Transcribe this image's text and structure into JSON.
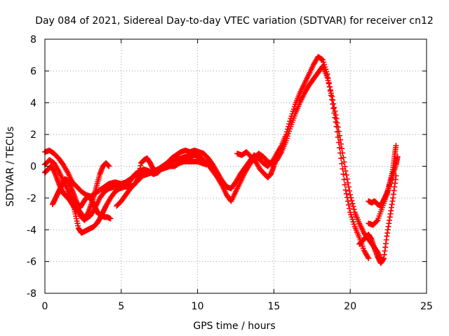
{
  "chart_data": {
    "type": "scatter",
    "title": "Day 084 of 2021, Sidereal Day-to-day VTEC variation (SDTVAR) for receiver cn12",
    "xlabel": "GPS time / hours",
    "ylabel": "SDTVAR / TECUs",
    "xlim": [
      0,
      25
    ],
    "ylim": [
      -8,
      8
    ],
    "xticks": [
      0,
      5,
      10,
      15,
      20,
      25
    ],
    "yticks": [
      -8,
      -6,
      -4,
      -2,
      0,
      2,
      4,
      6,
      8
    ],
    "grid": true,
    "marker": "+",
    "color": "#ff0000",
    "series": [
      {
        "points": [
          [
            0.0,
            0.9
          ],
          [
            0.3,
            1.0
          ],
          [
            0.6,
            0.8
          ],
          [
            0.9,
            0.5
          ],
          [
            1.2,
            0.1
          ],
          [
            1.5,
            -0.4
          ],
          [
            1.8,
            -1.0
          ],
          [
            2.1,
            -1.3
          ],
          [
            2.4,
            -1.6
          ],
          [
            2.7,
            -1.8
          ],
          [
            3.0,
            -1.9
          ],
          [
            3.3,
            -1.7
          ],
          [
            3.6,
            -1.5
          ],
          [
            3.9,
            -1.3
          ],
          [
            4.2,
            -1.1
          ],
          [
            4.6,
            -1.0
          ],
          [
            5.0,
            -1.1
          ],
          [
            5.3,
            -1.3
          ],
          [
            5.6,
            -0.9
          ],
          [
            5.9,
            -0.5
          ],
          [
            6.2,
            -0.3
          ],
          [
            6.5,
            -0.2
          ],
          [
            6.8,
            -0.3
          ],
          [
            7.1,
            -0.5
          ],
          [
            7.4,
            -0.4
          ],
          [
            7.7,
            -0.1
          ],
          [
            8.0,
            0.2
          ],
          [
            8.3,
            0.5
          ],
          [
            8.6,
            0.7
          ],
          [
            8.9,
            0.9
          ],
          [
            9.2,
            1.0
          ],
          [
            9.5,
            0.9
          ],
          [
            9.8,
            1.0
          ],
          [
            10.1,
            0.9
          ],
          [
            10.4,
            0.8
          ],
          [
            10.7,
            0.5
          ],
          [
            11.0,
            0.1
          ],
          [
            11.3,
            -0.4
          ],
          [
            11.6,
            -0.9
          ],
          [
            11.9,
            -1.3
          ],
          [
            12.2,
            -1.4
          ],
          [
            12.5,
            -1.0
          ],
          [
            12.8,
            -0.5
          ],
          [
            13.1,
            -0.1
          ],
          [
            13.4,
            0.3
          ],
          [
            13.7,
            0.7
          ],
          [
            14.0,
            0.5
          ],
          [
            14.3,
            0.2
          ],
          [
            14.6,
            0.0
          ],
          [
            14.9,
            0.3
          ],
          [
            15.2,
            0.8
          ],
          [
            15.5,
            1.3
          ],
          [
            15.8,
            2.0
          ],
          [
            16.1,
            3.0
          ],
          [
            16.4,
            3.9
          ],
          [
            16.7,
            4.6
          ],
          [
            17.0,
            5.2
          ],
          [
            17.3,
            5.8
          ],
          [
            17.6,
            6.4
          ],
          [
            17.9,
            6.9
          ],
          [
            18.2,
            6.7
          ],
          [
            18.5,
            5.8
          ],
          [
            18.8,
            4.2
          ],
          [
            19.1,
            2.5
          ],
          [
            19.4,
            0.5
          ],
          [
            19.7,
            -1.5
          ],
          [
            20.0,
            -2.9
          ],
          [
            20.3,
            -3.8
          ],
          [
            20.6,
            -4.5
          ],
          [
            20.9,
            -5.3
          ],
          [
            21.2,
            -5.8
          ]
        ]
      },
      {
        "points": [
          [
            0.0,
            0.1
          ],
          [
            0.3,
            0.4
          ],
          [
            0.6,
            0.2
          ],
          [
            0.9,
            -0.3
          ],
          [
            1.2,
            -0.9
          ],
          [
            1.5,
            -1.5
          ],
          [
            1.8,
            -2.1
          ],
          [
            2.1,
            -2.6
          ],
          [
            2.4,
            -3.0
          ],
          [
            2.7,
            -3.3
          ],
          [
            3.0,
            -3.1
          ],
          [
            3.3,
            -2.6
          ],
          [
            3.6,
            -2.0
          ],
          [
            3.9,
            -1.6
          ],
          [
            4.2,
            -1.4
          ],
          [
            4.6,
            -1.3
          ],
          [
            5.0,
            -1.1
          ],
          [
            5.3,
            -1.0
          ],
          [
            5.6,
            -0.8
          ],
          [
            5.9,
            -0.6
          ],
          [
            6.2,
            -0.5
          ],
          [
            6.5,
            -0.4
          ],
          [
            6.8,
            -0.4
          ],
          [
            7.1,
            -0.3
          ],
          [
            7.4,
            -0.2
          ],
          [
            7.7,
            0.0
          ],
          [
            8.0,
            0.2
          ],
          [
            8.3,
            0.3
          ],
          [
            8.6,
            0.4
          ],
          [
            8.9,
            0.5
          ],
          [
            9.2,
            0.6
          ],
          [
            9.5,
            0.6
          ],
          [
            9.8,
            0.7
          ],
          [
            10.1,
            0.6
          ],
          [
            10.4,
            0.4
          ],
          [
            10.7,
            0.1
          ],
          [
            11.0,
            -0.3
          ],
          [
            11.3,
            -0.7
          ],
          [
            11.6,
            -1.2
          ],
          [
            11.9,
            -1.8
          ],
          [
            12.2,
            -2.2
          ],
          [
            12.5,
            -1.6
          ],
          [
            12.8,
            -1.0
          ],
          [
            13.1,
            -0.4
          ],
          [
            13.4,
            0.1
          ],
          [
            13.7,
            0.5
          ],
          [
            14.0,
            0.8
          ],
          [
            14.3,
            0.6
          ],
          [
            14.6,
            0.3
          ],
          [
            14.9,
            0.1
          ],
          [
            15.2,
            0.4
          ],
          [
            15.5,
            0.9
          ],
          [
            15.8,
            1.6
          ],
          [
            16.1,
            2.5
          ],
          [
            16.4,
            3.3
          ],
          [
            16.7,
            4.0
          ],
          [
            17.0,
            4.6
          ],
          [
            17.3,
            5.1
          ],
          [
            17.6,
            5.5
          ],
          [
            17.9,
            5.9
          ],
          [
            18.2,
            6.3
          ],
          [
            18.5,
            5.6
          ],
          [
            18.8,
            4.4
          ],
          [
            19.1,
            3.0
          ],
          [
            19.4,
            1.4
          ],
          [
            19.7,
            -0.3
          ],
          [
            20.0,
            -1.8
          ],
          [
            20.3,
            -2.9
          ],
          [
            20.6,
            -3.6
          ],
          [
            20.9,
            -4.2
          ],
          [
            21.2,
            -4.6
          ],
          [
            21.5,
            -5.0
          ],
          [
            21.8,
            -5.4
          ],
          [
            22.0,
            -5.9
          ]
        ]
      },
      {
        "points": [
          [
            0.0,
            -0.4
          ],
          [
            0.2,
            -0.2
          ],
          [
            0.4,
            0.0
          ],
          [
            0.6,
            -0.3
          ],
          [
            0.8,
            -0.8
          ],
          [
            1.0,
            -1.3
          ],
          [
            1.2,
            -1.7
          ],
          [
            1.4,
            -1.9
          ],
          [
            1.6,
            -2.1
          ],
          [
            1.8,
            -2.4
          ],
          [
            2.0,
            -2.7
          ],
          [
            2.2,
            -2.9
          ],
          [
            2.4,
            -3.2
          ],
          [
            2.6,
            -3.4
          ],
          [
            2.8,
            -3.0
          ],
          [
            3.0,
            -2.5
          ],
          [
            3.2,
            -1.9
          ],
          [
            3.4,
            -1.2
          ],
          [
            3.6,
            -0.5
          ],
          [
            3.8,
            0.0
          ],
          [
            4.0,
            0.2
          ],
          [
            4.2,
            0.0
          ]
        ]
      },
      {
        "points": [
          [
            0.5,
            -2.4
          ],
          [
            0.7,
            -2.0
          ],
          [
            0.9,
            -1.6
          ],
          [
            1.1,
            -1.2
          ],
          [
            1.3,
            -0.8
          ],
          [
            1.5,
            -0.9
          ],
          [
            1.7,
            -1.3
          ],
          [
            1.9,
            -1.8
          ],
          [
            2.1,
            -2.3
          ],
          [
            2.3,
            -2.6
          ],
          [
            2.5,
            -2.3
          ],
          [
            2.7,
            -2.0
          ],
          [
            2.9,
            -1.9
          ],
          [
            3.1,
            -2.2
          ],
          [
            3.3,
            -2.6
          ],
          [
            3.5,
            -3.0
          ],
          [
            3.7,
            -3.1
          ],
          [
            3.9,
            -3.2
          ],
          [
            4.1,
            -3.2
          ],
          [
            4.3,
            -3.3
          ]
        ]
      },
      {
        "points": [
          [
            1.5,
            -1.6
          ],
          [
            1.8,
            -2.2
          ],
          [
            2.0,
            -3.0
          ],
          [
            2.2,
            -3.9
          ],
          [
            2.4,
            -4.2
          ],
          [
            2.6,
            -4.1
          ],
          [
            2.8,
            -4.0
          ],
          [
            3.0,
            -3.9
          ],
          [
            3.2,
            -3.8
          ],
          [
            3.4,
            -3.6
          ],
          [
            3.6,
            -3.3
          ],
          [
            3.8,
            -2.9
          ],
          [
            4.0,
            -2.5
          ],
          [
            4.3,
            -2.0
          ],
          [
            4.6,
            -1.6
          ],
          [
            4.9,
            -1.4
          ],
          [
            5.2,
            -1.3
          ],
          [
            5.5,
            -1.3
          ],
          [
            5.8,
            -1.2
          ],
          [
            6.1,
            -0.9
          ],
          [
            6.4,
            -0.6
          ],
          [
            6.7,
            -0.5
          ],
          [
            7.0,
            -0.4
          ],
          [
            7.3,
            -0.3
          ],
          [
            7.6,
            -0.2
          ],
          [
            7.9,
            -0.1
          ],
          [
            8.2,
            0.0
          ],
          [
            8.5,
            0.0
          ],
          [
            8.8,
            0.2
          ],
          [
            9.1,
            0.3
          ],
          [
            9.4,
            0.3
          ],
          [
            9.7,
            0.3
          ],
          [
            10.0,
            0.3
          ],
          [
            10.3,
            0.2
          ],
          [
            10.6,
            0.1
          ]
        ]
      },
      {
        "points": [
          [
            4.7,
            -2.5
          ],
          [
            5.0,
            -2.2
          ],
          [
            5.3,
            -1.8
          ],
          [
            5.6,
            -1.4
          ],
          [
            5.9,
            -1.1
          ],
          [
            6.1,
            -0.8
          ],
          [
            6.3,
            0.2
          ],
          [
            6.5,
            0.4
          ],
          [
            6.7,
            0.5
          ],
          [
            6.9,
            0.2
          ],
          [
            7.1,
            -0.2
          ],
          [
            7.3,
            -0.3
          ]
        ]
      },
      {
        "points": [
          [
            12.6,
            0.8
          ],
          [
            12.9,
            0.7
          ],
          [
            13.2,
            0.9
          ],
          [
            13.5,
            0.6
          ],
          [
            13.8,
            0.3
          ],
          [
            14.1,
            -0.2
          ],
          [
            14.4,
            -0.5
          ],
          [
            14.6,
            -0.7
          ],
          [
            14.8,
            -0.5
          ],
          [
            15.0,
            0.0
          ],
          [
            15.2,
            0.6
          ],
          [
            15.5,
            1.1
          ]
        ]
      },
      {
        "points": [
          [
            21.2,
            -2.2
          ],
          [
            21.4,
            -2.3
          ],
          [
            21.6,
            -2.2
          ],
          [
            21.8,
            -2.4
          ],
          [
            22.0,
            -2.5
          ],
          [
            22.2,
            -2.1
          ],
          [
            22.4,
            -1.7
          ],
          [
            22.6,
            -1.1
          ],
          [
            22.8,
            -0.5
          ],
          [
            23.0,
            0.1
          ],
          [
            23.1,
            0.6
          ]
        ]
      },
      {
        "points": [
          [
            20.6,
            -4.9
          ],
          [
            20.8,
            -4.7
          ],
          [
            21.0,
            -4.5
          ],
          [
            21.2,
            -4.3
          ],
          [
            21.4,
            -4.6
          ],
          [
            21.6,
            -5.2
          ],
          [
            21.8,
            -5.7
          ],
          [
            22.0,
            -6.1
          ],
          [
            22.2,
            -5.8
          ],
          [
            22.4,
            -4.4
          ],
          [
            22.6,
            -3.2
          ],
          [
            22.8,
            -2.0
          ],
          [
            23.0,
            -0.6
          ]
        ]
      },
      {
        "points": [
          [
            21.2,
            -3.6
          ],
          [
            21.5,
            -3.7
          ],
          [
            21.8,
            -3.4
          ],
          [
            22.1,
            -2.6
          ],
          [
            22.4,
            -1.8
          ],
          [
            22.6,
            -1.0
          ],
          [
            22.8,
            -0.2
          ],
          [
            22.9,
            0.6
          ],
          [
            23.0,
            1.3
          ]
        ]
      }
    ]
  }
}
